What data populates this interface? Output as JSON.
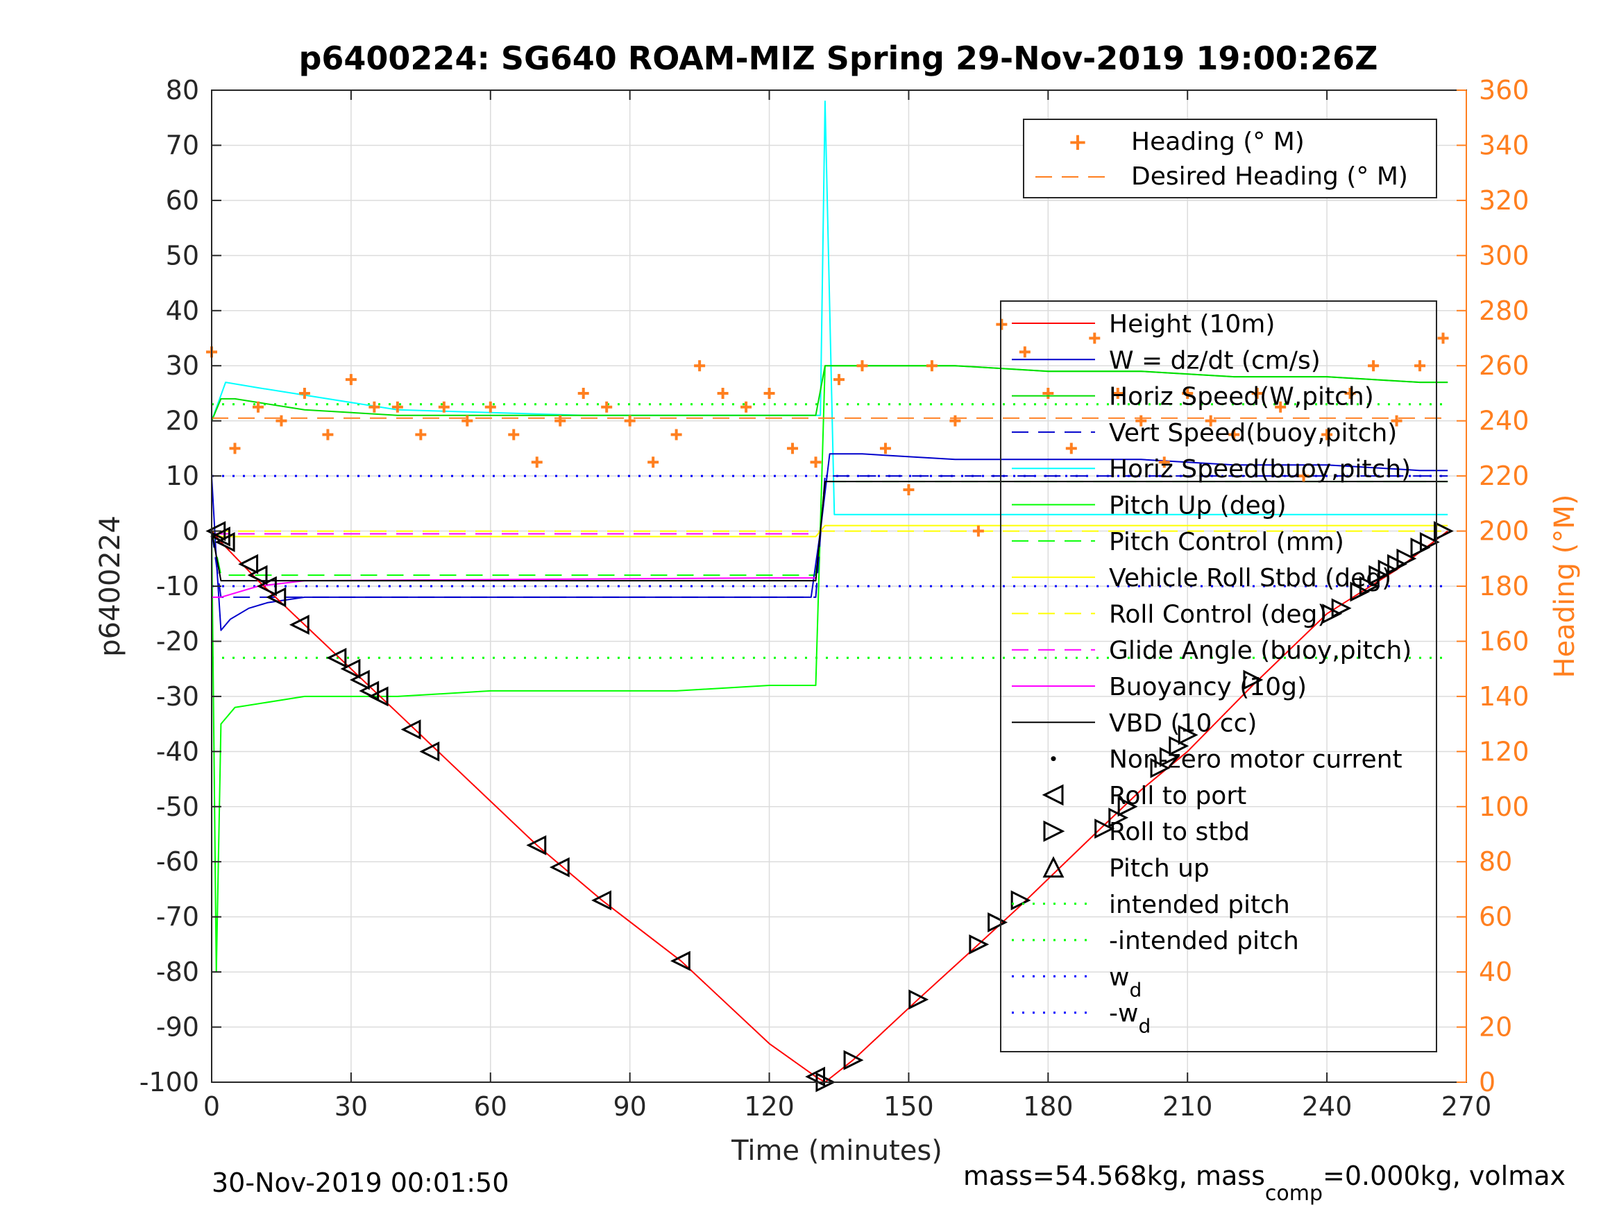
{
  "chart_data": {
    "type": "line",
    "title": "p6400224: SG640 ROAM-MIZ Spring 29-Nov-2019 19:00:26Z",
    "xlabel": "Time (minutes)",
    "ylabel": "p6400224",
    "y2label": "Heading (°M)",
    "xlim": [
      0,
      270
    ],
    "ylim": [
      -100,
      80
    ],
    "y2lim": [
      0,
      360
    ],
    "xticks": [
      "0",
      "30",
      "60",
      "90",
      "120",
      "150",
      "180",
      "210",
      "240",
      "270"
    ],
    "yticks": [
      "80",
      "70",
      "60",
      "50",
      "40",
      "30",
      "20",
      "10",
      "0",
      "-10",
      "-20",
      "-30",
      "-40",
      "-50",
      "-60",
      "-70",
      "-80",
      "-90",
      "-100"
    ],
    "y2ticks": [
      "360",
      "340",
      "320",
      "300",
      "280",
      "260",
      "240",
      "220",
      "200",
      "180",
      "160",
      "140",
      "120",
      "100",
      "80",
      "60",
      "40",
      "20",
      "0"
    ],
    "grid": true,
    "footer_left": "30-Nov-2019 00:01:50",
    "footer_right_parts": [
      "mass=54.568kg, mass",
      "comp",
      "=0.000kg, volmax"
    ],
    "colors": {
      "heading": "#ff7f1f",
      "height": "#ff0000",
      "w": "#0000cc",
      "horiz_w": "#00dd00",
      "horiz_buoy": "#00ffff",
      "pitch": "#00ff00",
      "roll": "#ffff00",
      "glide": "#ff00ff",
      "vbd": "#000000",
      "wd": "#0000ff",
      "right_axis": "#ff7f1f"
    },
    "legend_top": {
      "position": "top-right",
      "entries": [
        "Heading (° M)",
        "Desired Heading (° M)"
      ]
    },
    "legend_main": {
      "position": "right",
      "entries": [
        "Height (10m)",
        "W = dz/dt (cm/s)",
        "Horiz Speed(W,pitch)",
        "Vert Speed(buoy,pitch)",
        "Horiz Speed(buoy,pitch)",
        "Pitch Up (deg)",
        "Pitch Control (mm)",
        "Vehicle Roll Stbd (deg)",
        "Roll Control (deg)",
        "Glide Angle (buoy,pitch)",
        "Buoyancy (10g)",
        "VBD (10 cc)",
        "Non-zero motor current",
        "Roll to port",
        "Roll to stbd",
        "Pitch up",
        "intended pitch",
        "-intended pitch",
        "w_d",
        "-w_d"
      ],
      "subscript_entries": [
        {
          "base": "w",
          "sub": "d"
        },
        {
          "base": "-w",
          "sub": "d"
        }
      ]
    },
    "series": [
      {
        "name": "Height (10m)",
        "x": [
          0,
          2,
          10,
          20,
          30,
          40,
          50,
          70,
          84,
          101,
          120,
          130,
          132,
          138,
          152,
          165,
          174,
          190,
          200,
          210,
          224,
          240,
          255,
          266
        ],
        "values": [
          0,
          -2,
          -9,
          -17,
          -25,
          -33,
          -41,
          -57,
          -67,
          -78,
          -93,
          -99,
          -100,
          -96,
          -85,
          -75,
          -68,
          -55,
          -47,
          -40,
          -28,
          -15,
          -7,
          0
        ]
      },
      {
        "name": "W = dz/dt (cm/s)",
        "x": [
          0,
          1,
          2,
          4,
          8,
          12,
          20,
          40,
          60,
          80,
          100,
          120,
          129,
          131,
          133,
          140,
          160,
          180,
          200,
          220,
          240,
          260,
          266
        ],
        "values": [
          10,
          -5,
          -18,
          -16,
          -14,
          -13,
          -12,
          -12,
          -12,
          -12,
          -12,
          -12,
          -12,
          0,
          14,
          14,
          13,
          13,
          13,
          12,
          12,
          11,
          11
        ]
      },
      {
        "name": "Horiz Speed(W,pitch)",
        "x": [
          0,
          2,
          5,
          20,
          40,
          60,
          80,
          100,
          120,
          130,
          132,
          140,
          160,
          180,
          200,
          220,
          240,
          260,
          266
        ],
        "values": [
          20,
          24,
          24,
          22,
          21,
          21,
          21,
          21,
          21,
          21,
          30,
          30,
          30,
          29,
          29,
          28,
          28,
          27,
          27
        ]
      },
      {
        "name": "Vert Speed(buoy,pitch)",
        "x": [
          0,
          2,
          20,
          60,
          100,
          130,
          132,
          266
        ],
        "values": [
          0,
          -12,
          -12,
          -12,
          -12,
          -12,
          10,
          10
        ]
      },
      {
        "name": "Horiz Speed(buoy,pitch)",
        "x": [
          0,
          3,
          10,
          40,
          80,
          120,
          131,
          132,
          134,
          266
        ],
        "values": [
          20,
          27,
          26,
          22,
          21,
          21,
          21,
          78,
          3,
          3
        ]
      },
      {
        "name": "Pitch Up (deg)",
        "x": [
          0,
          1,
          2,
          5,
          20,
          40,
          60,
          80,
          100,
          120,
          130,
          132,
          140,
          160,
          180,
          200,
          220,
          240,
          260,
          266
        ],
        "values": [
          0,
          -80,
          -35,
          -32,
          -30,
          -30,
          -29,
          -29,
          -29,
          -28,
          -28,
          30,
          30,
          30,
          29,
          29,
          28,
          28,
          27,
          27
        ]
      },
      {
        "name": "Pitch Control (mm)",
        "x": [
          0,
          2,
          130,
          132,
          266
        ],
        "values": [
          0,
          -8,
          -8,
          9,
          9
        ]
      },
      {
        "name": "Vehicle Roll Stbd (deg)",
        "x": [
          0,
          2,
          40,
          80,
          120,
          130,
          132,
          180,
          220,
          266
        ],
        "values": [
          0,
          -1,
          -1,
          -1,
          -1,
          -1,
          1,
          1,
          1,
          1
        ]
      },
      {
        "name": "Roll Control (deg)",
        "x": [
          0,
          266
        ],
        "values": [
          0,
          0
        ]
      },
      {
        "name": "Glide Angle (buoy,pitch)",
        "x": [
          0,
          130
        ],
        "values": [
          -0.5,
          -0.5
        ]
      },
      {
        "name": "Buoyancy (10g)",
        "x": [
          0,
          2,
          10,
          20,
          60,
          120,
          130
        ],
        "values": [
          -12,
          -12,
          -10,
          -9,
          -8.8,
          -8.5,
          -8.5
        ]
      },
      {
        "name": "VBD (10 cc)",
        "x": [
          0,
          2,
          130,
          132,
          266
        ],
        "values": [
          0,
          -9,
          -9,
          9,
          9
        ]
      },
      {
        "name": "Heading (° M)",
        "x": [
          0,
          5,
          10,
          15,
          20,
          25,
          30,
          35,
          40,
          45,
          50,
          55,
          60,
          65,
          70,
          75,
          80,
          85,
          90,
          95,
          100,
          105,
          110,
          115,
          120,
          125,
          130,
          135,
          140,
          145,
          150,
          155,
          160,
          165,
          170,
          175,
          180,
          185,
          190,
          195,
          200,
          205,
          210,
          215,
          220,
          225,
          230,
          235,
          240,
          245,
          250,
          255,
          260,
          265
        ],
        "values": [
          265,
          230,
          245,
          240,
          250,
          235,
          255,
          245,
          245,
          235,
          245,
          240,
          245,
          235,
          225,
          240,
          250,
          245,
          240,
          225,
          235,
          260,
          250,
          245,
          250,
          230,
          225,
          255,
          260,
          230,
          215,
          260,
          240,
          200,
          275,
          265,
          250,
          230,
          270,
          250,
          240,
          225,
          250,
          240,
          235,
          250,
          245,
          220,
          235,
          250,
          260,
          240,
          260,
          270
        ]
      },
      {
        "name": "Desired Heading (° M)",
        "x": [
          0,
          266
        ],
        "values": [
          241,
          241
        ]
      },
      {
        "name": "Roll to port",
        "x": [
          1,
          2,
          3,
          8,
          10,
          12,
          14,
          19,
          27,
          30,
          32,
          34,
          36,
          43,
          47,
          70,
          75,
          84,
          101,
          130
        ],
        "values": [
          0,
          -1,
          -2,
          -6,
          -8,
          -10,
          -12,
          -17,
          -23,
          -25,
          -27,
          -29,
          -30,
          -36,
          -40,
          -57,
          -61,
          -67,
          -78,
          -99
        ]
      },
      {
        "name": "Roll to stbd",
        "x": [
          132,
          138,
          152,
          165,
          169,
          174,
          192,
          195,
          197,
          204,
          206,
          208,
          210,
          224,
          241,
          243,
          247,
          249,
          251,
          253,
          255,
          257,
          260,
          262,
          265
        ],
        "values": [
          -100,
          -96,
          -85,
          -75,
          -71,
          -67,
          -54,
          -52,
          -50,
          -43,
          -41,
          -39,
          -37,
          -27,
          -15,
          -14,
          -11,
          -10,
          -8,
          -7,
          -6,
          -5,
          -3,
          -2,
          0
        ]
      },
      {
        "name": "intended pitch",
        "x": [
          0,
          266
        ],
        "values": [
          23,
          23
        ]
      },
      {
        "name": "-intended pitch",
        "x": [
          0,
          266
        ],
        "values": [
          -23,
          -23
        ]
      },
      {
        "name": "w_d",
        "x": [
          0,
          266
        ],
        "values": [
          10,
          10
        ]
      },
      {
        "name": "-w_d",
        "x": [
          0,
          266
        ],
        "values": [
          -10,
          -10
        ]
      }
    ]
  }
}
